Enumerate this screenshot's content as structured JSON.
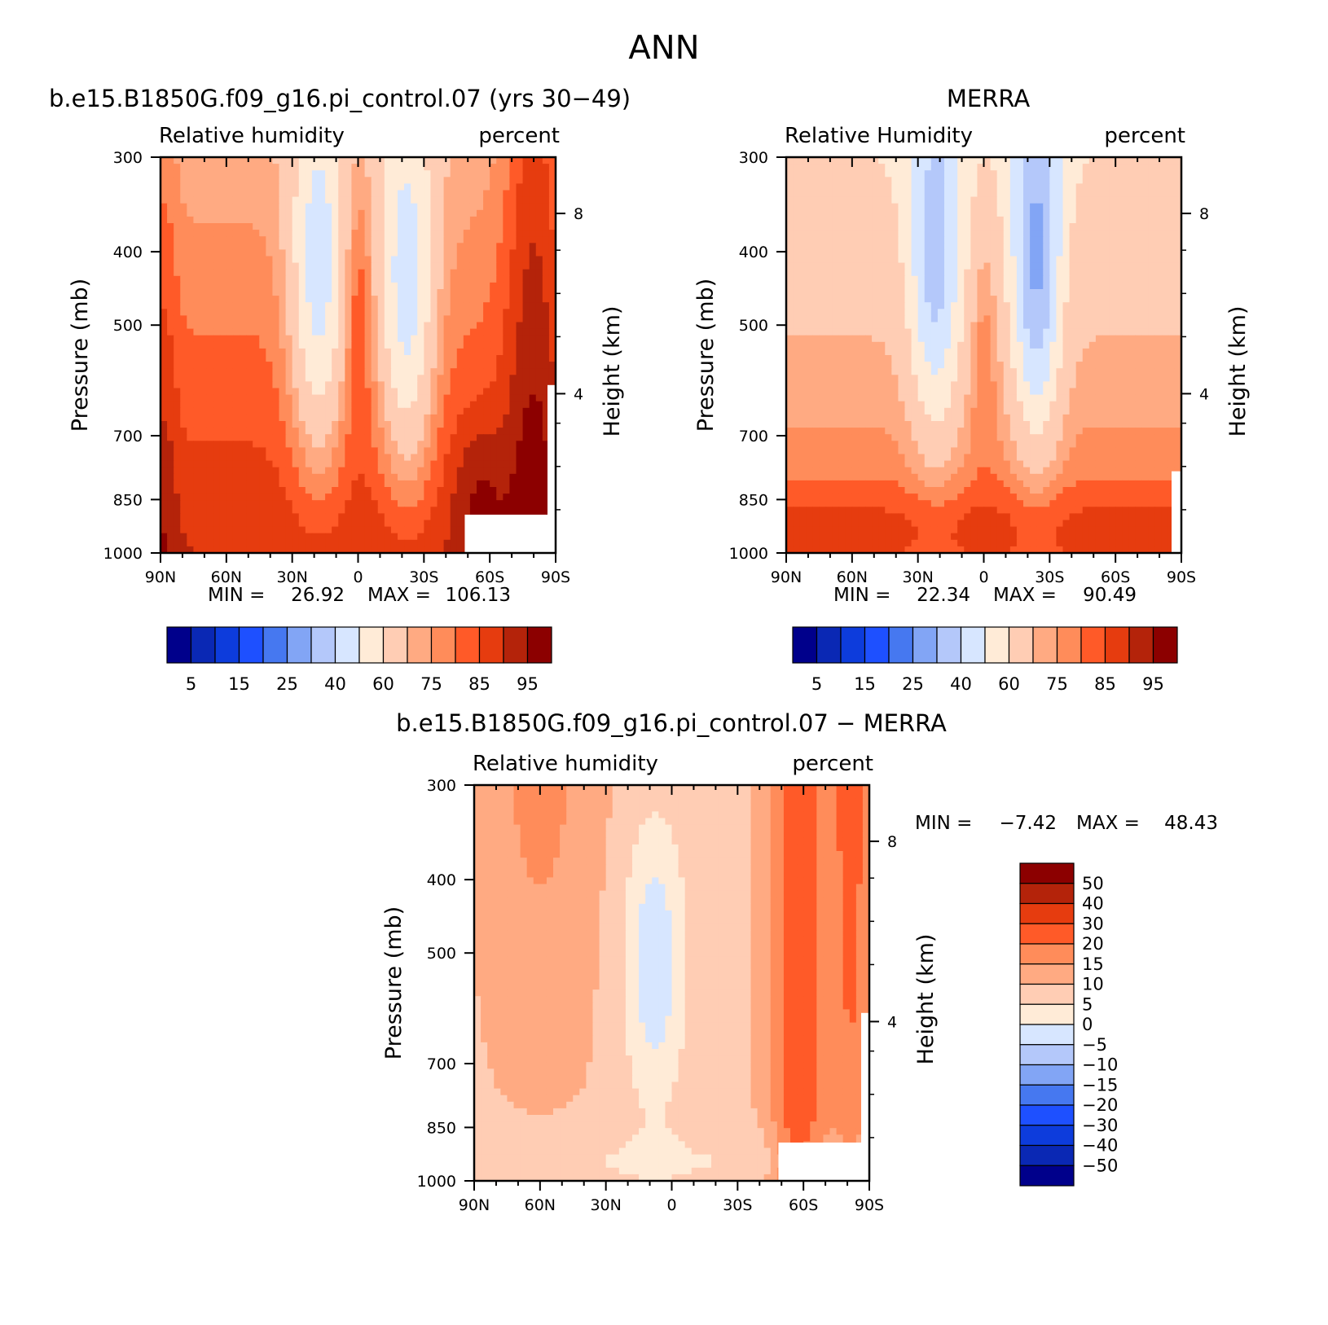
{
  "figure": {
    "title": "ANN"
  },
  "chart_data": [
    {
      "type": "heatmap",
      "title": "b.e15.B1850G.f09_g16.pi_control.07 (yrs 30-49)",
      "left_label": "Relative humidity",
      "right_label": "percent",
      "ylabel": "Pressure (mb)",
      "y2label": "Height (km)",
      "x_ticks": [
        "90N",
        "60N",
        "30N",
        "0",
        "30S",
        "60S",
        "90S"
      ],
      "y_ticks": [
        "300",
        "400",
        "500",
        "700",
        "850",
        "1000"
      ],
      "y2_ticks": [
        "8",
        "4"
      ],
      "ylim": [
        1000,
        300
      ],
      "min_label": "MIN =",
      "min_value": "26.92",
      "max_label": "MAX =",
      "max_value": "106.13",
      "levels": [
        5,
        10,
        15,
        20,
        25,
        30,
        40,
        50,
        60,
        70,
        75,
        80,
        85,
        90,
        95
      ],
      "colorbar_labels": [
        "5",
        "15",
        "25",
        "40",
        "60",
        "75",
        "85",
        "95"
      ],
      "colors": [
        "#00008b",
        "#0a28b4",
        "#0d3cdc",
        "#1e50ff",
        "#4678f0",
        "#82a5f5",
        "#b4c8fa",
        "#d7e6ff",
        "#ffebd7",
        "#ffcdb4",
        "#ffaa82",
        "#ff8c5a",
        "#ff5a28",
        "#e63c0f",
        "#b4230a",
        "#8c0000"
      ]
    },
    {
      "type": "heatmap",
      "title": "MERRA",
      "left_label": "Relative Humidity",
      "right_label": "percent",
      "ylabel": "Pressure (mb)",
      "y2label": "Height (km)",
      "x_ticks": [
        "90N",
        "60N",
        "30N",
        "0",
        "30S",
        "60S",
        "90S"
      ],
      "y_ticks": [
        "300",
        "400",
        "500",
        "700",
        "850",
        "1000"
      ],
      "y2_ticks": [
        "8",
        "4"
      ],
      "ylim": [
        1000,
        300
      ],
      "min_label": "MIN =",
      "min_value": "22.34",
      "max_label": "MAX =",
      "max_value": "90.49",
      "levels": [
        5,
        10,
        15,
        20,
        25,
        30,
        40,
        50,
        60,
        70,
        75,
        80,
        85,
        90,
        95
      ],
      "colorbar_labels": [
        "5",
        "15",
        "25",
        "40",
        "60",
        "75",
        "85",
        "95"
      ],
      "colors": [
        "#00008b",
        "#0a28b4",
        "#0d3cdc",
        "#1e50ff",
        "#4678f0",
        "#82a5f5",
        "#b4c8fa",
        "#d7e6ff",
        "#ffebd7",
        "#ffcdb4",
        "#ffaa82",
        "#ff8c5a",
        "#ff5a28",
        "#e63c0f",
        "#b4230a",
        "#8c0000"
      ]
    },
    {
      "type": "heatmap",
      "title": "b.e15.B1850G.f09_g16.pi_control.07 - MERRA",
      "left_label": "Relative humidity",
      "right_label": "percent",
      "ylabel": "Pressure (mb)",
      "y2label": "Height (km)",
      "x_ticks": [
        "90N",
        "60N",
        "30N",
        "0",
        "30S",
        "60S",
        "90S"
      ],
      "y_ticks": [
        "300",
        "400",
        "500",
        "700",
        "850",
        "1000"
      ],
      "y2_ticks": [
        "8",
        "4"
      ],
      "ylim": [
        1000,
        300
      ],
      "min_label": "MIN =",
      "min_value": "-7.42",
      "max_label": "MAX =",
      "max_value": "48.43",
      "levels": [
        -50,
        -40,
        -30,
        -20,
        -15,
        -10,
        -5,
        0,
        5,
        10,
        15,
        20,
        30,
        40,
        50
      ],
      "colorbar_labels": [
        "50",
        "40",
        "30",
        "20",
        "15",
        "10",
        "5",
        "0",
        "-5",
        "-10",
        "-15",
        "-20",
        "-30",
        "-40",
        "-50"
      ],
      "colors": [
        "#00008b",
        "#0a28b4",
        "#0d3cdc",
        "#1e50ff",
        "#4678f0",
        "#82a5f5",
        "#b4c8fa",
        "#d7e6ff",
        "#ffebd7",
        "#ffcdb4",
        "#ffaa82",
        "#ff8c5a",
        "#ff5a28",
        "#e63c0f",
        "#b4230a",
        "#8c0000"
      ]
    }
  ]
}
